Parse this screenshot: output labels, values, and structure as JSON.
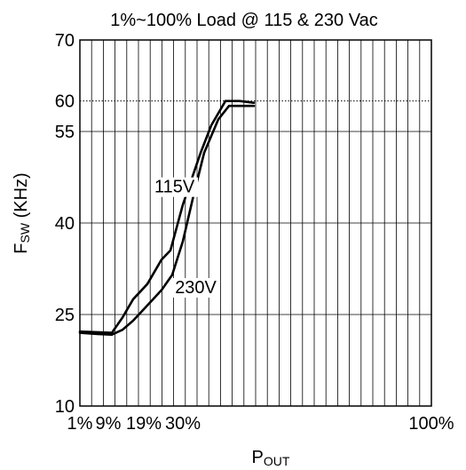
{
  "chart_data": {
    "type": "line",
    "title": "1%~100% Load @ 115 & 230 Vac",
    "xlabel_main": "P",
    "xlabel_sub": "OUT",
    "ylabel_main": "F",
    "ylabel_sub": "SW",
    "ylabel_unit": " (KHz)",
    "x_tick_labels": [
      {
        "x": 1,
        "label": "1%"
      },
      {
        "x": 9,
        "label": "9%"
      },
      {
        "x": 19,
        "label": "19%"
      },
      {
        "x": 30,
        "label": "30%"
      },
      {
        "x": 100,
        "label": "100%"
      }
    ],
    "y_ticks": [
      10,
      25,
      40,
      55,
      60,
      70
    ],
    "xlim": [
      1,
      100
    ],
    "ylim": [
      10,
      70
    ],
    "grid": true,
    "reference_line": {
      "y": 60,
      "style": "dotted"
    },
    "series": [
      {
        "name": "115V",
        "points": [
          [
            1,
            22.2
          ],
          [
            10,
            22
          ],
          [
            13,
            24.5
          ],
          [
            16,
            27.5
          ],
          [
            20,
            30
          ],
          [
            24,
            34
          ],
          [
            26.5,
            35.5
          ],
          [
            30,
            43
          ],
          [
            35,
            51.5
          ],
          [
            38,
            56
          ],
          [
            42,
            60
          ],
          [
            46,
            60
          ],
          [
            50,
            59.7
          ]
        ],
        "label_at": [
          22,
          45
        ]
      },
      {
        "name": "230V",
        "points": [
          [
            1,
            22
          ],
          [
            6,
            21.8
          ],
          [
            10,
            21.7
          ],
          [
            13,
            22.5
          ],
          [
            16,
            24
          ],
          [
            20,
            26.5
          ],
          [
            24,
            29
          ],
          [
            27,
            31.5
          ],
          [
            30,
            37
          ],
          [
            33,
            44.5
          ],
          [
            36,
            51.5
          ],
          [
            40,
            57
          ],
          [
            43,
            59.2
          ],
          [
            50,
            59.2
          ]
        ],
        "label_at": [
          27.8,
          28.5
        ]
      }
    ]
  }
}
